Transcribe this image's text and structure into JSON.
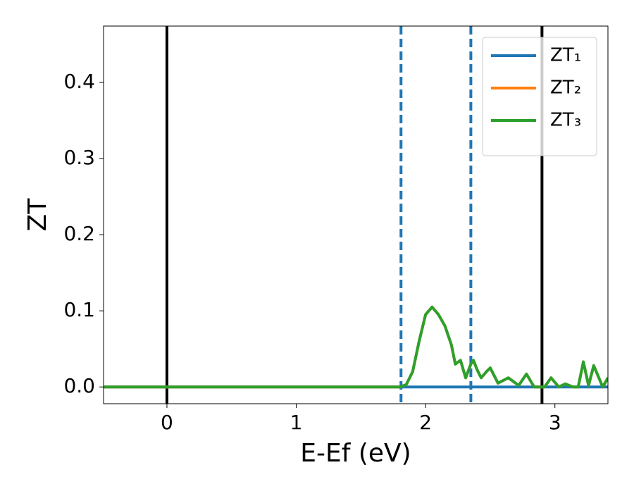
{
  "chart_data": {
    "type": "line",
    "xlabel": "E-Ef (eV)",
    "ylabel": "ZT",
    "x": [
      -0.49,
      1.8,
      1.85,
      1.9,
      1.95,
      2.0,
      2.05,
      2.1,
      2.15,
      2.2,
      2.23,
      2.27,
      2.31,
      2.35,
      2.37,
      2.4,
      2.43,
      2.47,
      2.5,
      2.56,
      2.64,
      2.72,
      2.78,
      2.84,
      2.92,
      2.97,
      3.03,
      3.08,
      3.14,
      3.18,
      3.22,
      3.26,
      3.3,
      3.37,
      3.41
    ],
    "series": [
      {
        "name": "ZT₁",
        "color": "#1f77b4",
        "values": [
          0,
          0,
          0,
          0,
          0,
          0,
          0,
          0,
          0,
          0,
          0,
          0,
          0,
          0,
          0,
          0,
          0,
          0,
          0,
          0,
          0,
          0,
          0,
          0,
          0,
          0,
          0,
          0,
          0,
          0,
          0,
          0,
          0,
          0,
          0
        ]
      },
      {
        "name": "ZT₂",
        "color": "#ff7f0e",
        "values": [
          0,
          0,
          0.003,
          0.02,
          0.06,
          0.095,
          0.105,
          0.095,
          0.08,
          0.055,
          0.03,
          0.035,
          0.012,
          0.03,
          0.035,
          0.022,
          0.012,
          0.02,
          0.025,
          0.005,
          0.012,
          0.002,
          0.017,
          0,
          0,
          0.012,
          0,
          0.004,
          0,
          0,
          0.033,
          0.002,
          0.028,
          0,
          0.012
        ]
      },
      {
        "name": "ZT₃",
        "color": "#2ca02c",
        "values": [
          0,
          0,
          0.003,
          0.02,
          0.06,
          0.095,
          0.105,
          0.095,
          0.08,
          0.055,
          0.03,
          0.035,
          0.012,
          0.03,
          0.035,
          0.022,
          0.012,
          0.02,
          0.025,
          0.005,
          0.012,
          0.002,
          0.017,
          0,
          0,
          0.012,
          0,
          0.004,
          0,
          0,
          0.033,
          0.002,
          0.028,
          0,
          0.012
        ]
      }
    ],
    "vlines": [
      {
        "x": 0,
        "color": "#000000",
        "dashed": false
      },
      {
        "x": 1.81,
        "color": "#1f77b4",
        "dashed": true
      },
      {
        "x": 2.35,
        "color": "#1f77b4",
        "dashed": true
      },
      {
        "x": 2.9,
        "color": "#000000",
        "dashed": false
      }
    ],
    "xlim": [
      -0.49,
      3.41
    ],
    "ylim": [
      -0.022,
      0.474
    ],
    "xticks": [
      0,
      1,
      2,
      3
    ],
    "yticks": [
      {
        "value": 0,
        "label": "0.0"
      },
      0.1,
      0.2,
      0.3,
      0.4
    ],
    "grid": false,
    "legend": "upper right"
  }
}
